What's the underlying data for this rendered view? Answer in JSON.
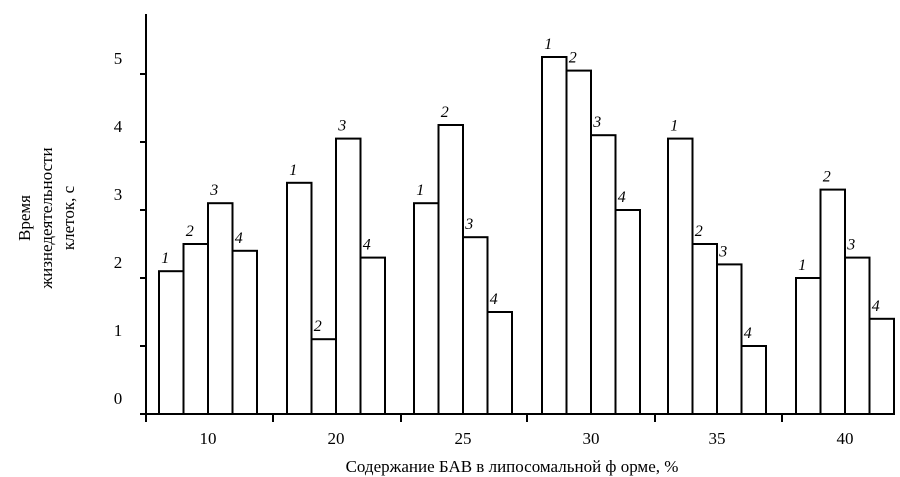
{
  "chart_data": {
    "type": "bar",
    "xlabel": "Содержание БАВ в липосомальной ф орме, %",
    "ylabel": [
      "Время",
      "жизнедеятельности",
      "клеток, с"
    ],
    "ylim": [
      0,
      5
    ],
    "yticks": [
      "0",
      "1",
      "2",
      "3",
      "4",
      "5"
    ],
    "categories": [
      "10",
      "20",
      "25",
      "30",
      "35",
      "40"
    ],
    "series": [
      {
        "name": "1",
        "values": [
          2.1,
          3.4,
          3.1,
          5.25,
          4.05,
          2.0
        ]
      },
      {
        "name": "2",
        "values": [
          2.5,
          1.1,
          4.25,
          5.05,
          2.5,
          3.3
        ]
      },
      {
        "name": "3",
        "values": [
          3.1,
          4.05,
          2.6,
          4.1,
          2.2,
          2.3
        ]
      },
      {
        "name": "4",
        "values": [
          2.4,
          2.3,
          1.5,
          3.0,
          1.0,
          1.4
        ]
      }
    ],
    "grid": false,
    "legend": "none"
  }
}
